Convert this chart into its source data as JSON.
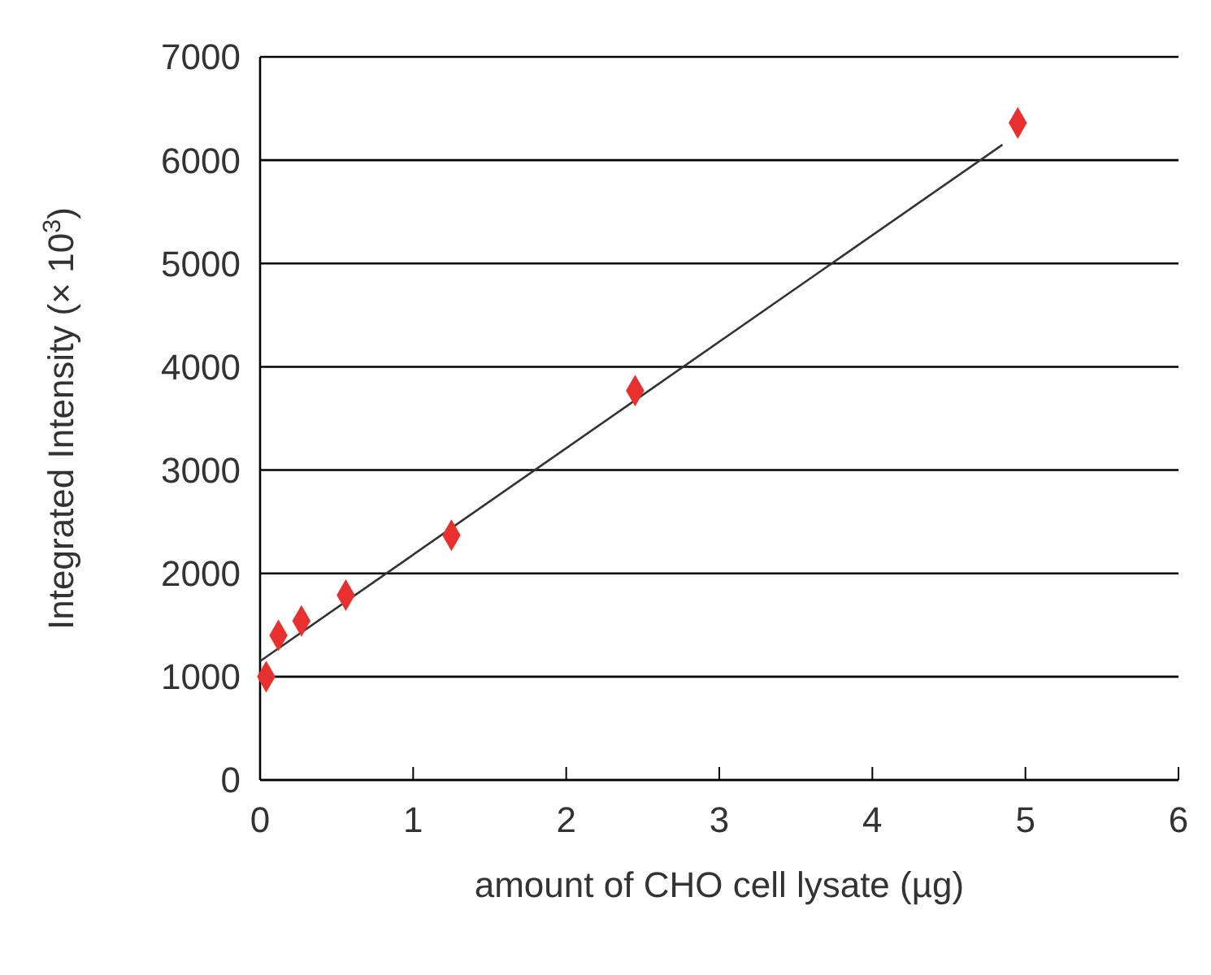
{
  "chart_data": {
    "type": "scatter",
    "xlabel": "amount of CHO cell lysate (µg)",
    "ylabel": "Integrated Intensity (× 10$^{3}$)",
    "xlim": [
      0,
      6
    ],
    "xticks": [
      0,
      1,
      2,
      3,
      4,
      5,
      6
    ],
    "ylim": [
      0,
      7000
    ],
    "yticks": [
      0,
      1000,
      2000,
      3000,
      4000,
      5000,
      6000,
      7000
    ],
    "grid": "y",
    "marker": "diamond",
    "series": [
      {
        "color": "#e8312f",
        "x": [
          0.04,
          0.12,
          0.27,
          0.56,
          1.25,
          2.45,
          4.95
        ],
        "values": [
          1000,
          1400,
          1540,
          1790,
          2370,
          3770,
          6360
        ]
      },
      {
        "type": "line",
        "color": "#333333",
        "marker": "none",
        "x": [
          0,
          4.85
        ],
        "values": [
          1150,
          6150
        ]
      }
    ]
  }
}
